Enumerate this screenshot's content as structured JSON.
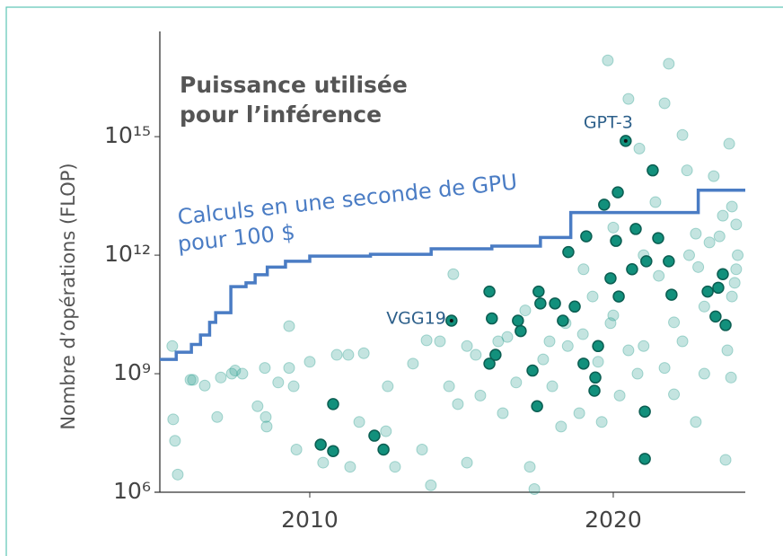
{
  "chart_data": {
    "type": "scatter",
    "title": [
      "Puissance utilisée",
      "pour l’inférence"
    ],
    "ylabel": "Nombre d’opérations (FLOP)",
    "log_y": true,
    "xlim": [
      2005.06,
      2024.35
    ],
    "ylim": [
      1000000.0,
      4.6e+17
    ],
    "xticks": [
      2010,
      2020
    ],
    "yticks": [
      {
        "value": 1000000.0,
        "label": "10⁶"
      },
      {
        "value": 1000000000.0,
        "label": "10⁹"
      },
      {
        "value": 1000000000000.0,
        "label": "10¹²"
      },
      {
        "value": 1000000000000000.0,
        "label": "10¹⁵"
      }
    ],
    "series": [
      {
        "color": "#2a9d8f",
        "opacity": 0.28,
        "x": [
          2005.47,
          2005.5,
          2005.56,
          2005.65,
          2006.07,
          2006.15,
          2006.54,
          2006.95,
          2007.07,
          2007.43,
          2007.54,
          2007.78,
          2008.28,
          2008.52,
          2008.55,
          2008.58,
          2008.96,
          2009.32,
          2009.47,
          2009.32,
          2009.56,
          2010,
          2010.44,
          2010.89,
          2011.27,
          2011.33,
          2011.63,
          2011.78,
          2012.51,
          2012.57,
          2012.81,
          2013.4,
          2013.7,
          2013.85,
          2013.99,
          2014.29,
          2014.59,
          2014.73,
          2014.88,
          2015.18,
          2015.47,
          2015.62,
          2016.36,
          2016.51,
          2016.8,
          2017.25,
          2017.4,
          2017.69,
          2017.99,
          2018.28,
          2018.88,
          2019.62,
          2019.82,
          2020.5,
          2020.86,
          2021.39,
          2021.69,
          2021.83,
          2022.28,
          2022.43,
          2022.72,
          2023.17,
          2023.31,
          2023.76,
          2023.82,
          2023.91,
          2024.05,
          2023.91,
          2022.72,
          2022.28,
          2021.69,
          2020.5,
          2020.21,
          2019.91,
          2019.32,
          2019.02,
          2018.43,
          2017.9,
          2017.1,
          2016.21,
          2015.18,
          2023.7,
          2023.88,
          2024.05,
          2023.61,
          2019,
          2020,
          2021,
          2022,
          2023,
          2021.5,
          2022.5,
          2023.5,
          2020.8,
          2019.5,
          2018.5,
          2022,
          2023,
          2021,
          2020,
          2022.8,
          2024,
          2024.1
        ],
        "values": [
          5000000000.0,
          70000000.0,
          20000000.0,
          2800000.0,
          700000000.0,
          700000000.0,
          500000000.0,
          80000000.0,
          800000000.0,
          1000000000.0,
          1200000000.0,
          1000000000.0,
          150000000.0,
          1400000000.0,
          80000000.0,
          46000000.0,
          600000000.0,
          1400000000.0,
          480000000.0,
          16000000000.0,
          12000000.0,
          2000000000.0,
          5600000.0,
          3000000000.0,
          3000000000.0,
          4400000.0,
          60000000.0,
          3300000000.0,
          35000000.0,
          480000000.0,
          4400000.0,
          1800000000.0,
          12000000.0,
          7000000000.0,
          1500000.0,
          6600000000.0,
          480000000.0,
          330000000000.0,
          170000000.0,
          5600000.0,
          3000000000.0,
          280000000.0,
          100000000.0,
          8500000000.0,
          600000000.0,
          4400000.0,
          1200000.0,
          2300000000.0,
          480000000.0,
          46000000.0,
          100000000.0,
          60000000.0,
          8.5e+16,
          9000000000000000.0,
          500000000000000.0,
          22000000000000.0,
          7000000000000000.0,
          7e+16,
          1100000000000000.0,
          140000000000000.0,
          60000000.0,
          2100000000000.0,
          100000000000000.0,
          3900000000.0,
          660000000000000.0,
          17000000000000.0,
          440000000000.0,
          90000000000.0,
          3500000000000.0,
          6600000000.0,
          1400000000.0,
          3900000000.0,
          280000000.0,
          19000000000.0,
          90000000000.0,
          440000000000.0,
          19000000000.0,
          6600000000.0,
          40000000000.0,
          6600000000.0,
          5000000000.0,
          6600000.0,
          800000000.0,
          6000000000000.0,
          10000000000000.0,
          10000000000.0,
          30000000000.0,
          5000000000.0,
          20000000000.0,
          50000000000.0,
          300000000000.0,
          1000000000000.0,
          3000000000000.0,
          1000000000.0,
          2000000000.0,
          5000000000.0,
          300000000.0,
          1000000000.0,
          1000000000000.0,
          5000000000000.0,
          500000000000.0,
          200000000000.0,
          1000000000000.0
        ]
      },
      {
        "color": "#12907c",
        "stroke": "#0b5e52",
        "opacity": 1,
        "x": [
          2010.77,
          2010.36,
          2010.77,
          2012.13,
          2012.43,
          2015.92,
          2016.0,
          2015.92,
          2016.12,
          2016.86,
          2016.95,
          2017.54,
          2017.6,
          2017.34,
          2017.49,
          2018.08,
          2018.34,
          2018.52,
          2018.73,
          2019.02,
          2019.38,
          2019.41,
          2019.5,
          2019.11,
          2019.7,
          2019.91,
          2020.09,
          2020.15,
          2020.18,
          2020.62,
          2020.74,
          2021.04,
          2021.04,
          2021.09,
          2021.3,
          2021.48,
          2021.83,
          2021.92,
          2023.11,
          2023.61,
          2023.37,
          2023.7,
          2023.46
        ],
        "values": [
          170000000.0,
          16000000.0,
          11000000.0,
          27000000.0,
          12000000.0,
          120000000000.0,
          25000000000.0,
          1800000000.0,
          3000000000.0,
          22000000000.0,
          12000000000.0,
          120000000000.0,
          60000000000.0,
          1200000000.0,
          150000000.0,
          60000000000.0,
          22000000000.0,
          1200000000000.0,
          50000000000.0,
          1800000000.0,
          370000000.0,
          800000000.0,
          5000000000.0,
          3000000000000.0,
          19000000000000.0,
          260000000000.0,
          2300000000000.0,
          39000000000000.0,
          90000000000.0,
          440000000000.0,
          4600000000000.0,
          110000000.0,
          7000000.0,
          700000000000.0,
          140000000000000.0,
          2700000000000.0,
          700000000000.0,
          100000000000.0,
          120000000000.0,
          330000000000.0,
          28000000000.0,
          17000000000.0,
          150000000000.0
        ]
      }
    ],
    "annotations": [
      {
        "text": "GPT-3",
        "x": 2020.41,
        "y": 780000000000000.0
      },
      {
        "text": "VGG19",
        "x": 2014.67,
        "y": 22000000000.0
      }
    ],
    "line": {
      "label": [
        "Calculs en une seconde de GPU",
        "pour 100 $"
      ],
      "color": "#4a7cc4",
      "step": "post",
      "x": [
        2005.06,
        2005.6,
        2006.1,
        2006.4,
        2006.7,
        2006.9,
        2007.4,
        2007.9,
        2008.2,
        2008.6,
        2009.2,
        2010,
        2012,
        2014,
        2016,
        2017.6,
        2018.6,
        2022.8,
        2024.35
      ],
      "values": [
        2300000000.0,
        3500000000.0,
        5500000000.0,
        9500000000.0,
        20000000000.0,
        35000000000.0,
        160000000000.0,
        200000000000.0,
        320000000000.0,
        500000000000.0,
        700000000000.0,
        950000000000.0,
        1050000000000.0,
        1450000000000.0,
        1700000000000.0,
        2800000000000.0,
        12000000000000.0,
        44000000000000.0,
        44000000000000.0
      ]
    }
  }
}
